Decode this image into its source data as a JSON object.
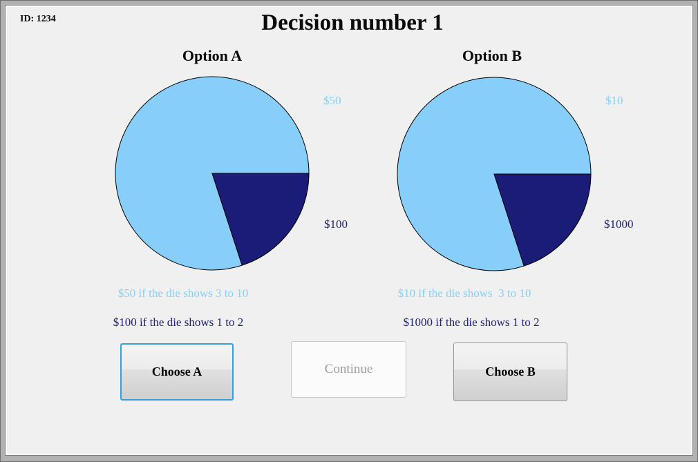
{
  "window": {
    "id_label": "ID: 1234",
    "title": "Decision number 1"
  },
  "chart_data": [
    {
      "type": "pie",
      "title": "Option A",
      "rotation_deg": 72,
      "labels_position": "right",
      "slices": [
        {
          "label": "$50",
          "share": 0.8,
          "percent": 80,
          "die_range": "3 to 10",
          "color": "#87CEFA",
          "description": "$50 if the die shows 3 to 10"
        },
        {
          "label": "$100",
          "share": 0.2,
          "percent": 20,
          "die_range": "1 to 2",
          "color": "#1B1B78",
          "description": "$100 if the die shows 1 to 2"
        }
      ]
    },
    {
      "type": "pie",
      "title": "Option B",
      "rotation_deg": 72,
      "labels_position": "right",
      "slices": [
        {
          "label": "$10",
          "share": 0.8,
          "percent": 80,
          "die_range": "3 to 10",
          "color": "#87CEFA",
          "description": "$10 if the die shows  3 to 10"
        },
        {
          "label": "$1000",
          "share": 0.2,
          "percent": 20,
          "die_range": "1 to 2",
          "color": "#1B1B78",
          "description": "$1000 if the die shows 1 to 2"
        }
      ]
    }
  ],
  "buttons": {
    "choose_a": "Choose A",
    "continue": "Continue",
    "choose_b": "Choose B"
  },
  "colors": {
    "background": "#F0F0F0",
    "light_slice": "#87CEFA",
    "dark_slice": "#1B1B78",
    "focus_border": "#38A0D9"
  }
}
